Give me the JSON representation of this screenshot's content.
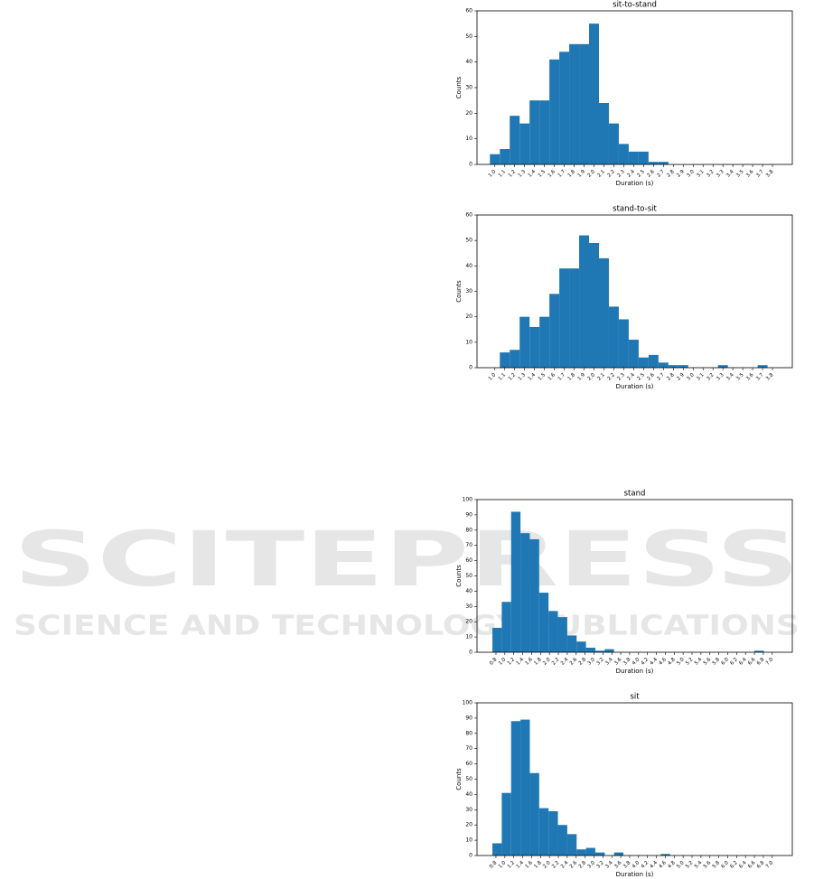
{
  "chart_data": [
    {
      "type": "histogram",
      "title": "sit-to-stand",
      "xlabel": "Duration (s)",
      "ylabel": "Counts",
      "color": "#1f77b4",
      "bins": [
        0.95,
        1.05,
        1.15,
        1.25,
        1.35,
        1.45,
        1.55,
        1.65,
        1.75,
        1.85,
        1.95,
        2.05,
        2.15,
        2.25,
        2.35,
        2.45,
        2.55,
        2.65,
        2.75,
        2.85,
        2.95,
        3.05,
        3.15,
        3.25,
        3.35,
        3.45,
        3.55,
        3.65,
        3.75,
        3.85
      ],
      "values": [
        4,
        6,
        19,
        16,
        25,
        25,
        41,
        44,
        47,
        47,
        55,
        24,
        16,
        8,
        5,
        5,
        1,
        1,
        0,
        0,
        0,
        0,
        0,
        0,
        0,
        0,
        0,
        0,
        0
      ],
      "xlim": [
        0.82,
        4.0
      ],
      "ylim": [
        0,
        60
      ],
      "yticks": [
        0,
        10,
        20,
        30,
        40,
        50,
        60
      ],
      "xticks": [
        {
          "value": 1,
          "label": "1.0"
        },
        1.1,
        1.2,
        1.3,
        1.4,
        1.5,
        1.6,
        1.7,
        1.8,
        1.9,
        {
          "value": 2,
          "label": "2.0"
        },
        2.1,
        2.2,
        2.3,
        2.4,
        2.5,
        2.6,
        2.7,
        2.8,
        2.9,
        {
          "value": 3,
          "label": "3.0"
        },
        3.1,
        3.2,
        3.3,
        3.4,
        3.5,
        3.6,
        3.7,
        3.8
      ]
    },
    {
      "type": "histogram",
      "title": "stand-to-sit",
      "xlabel": "Duration (s)",
      "ylabel": "Counts",
      "color": "#1f77b4",
      "bins": [
        1.05,
        1.15,
        1.25,
        1.35,
        1.45,
        1.55,
        1.65,
        1.75,
        1.85,
        1.95,
        2.05,
        2.15,
        2.25,
        2.35,
        2.45,
        2.55,
        2.65,
        2.75,
        2.85,
        2.95,
        3.05,
        3.15,
        3.25,
        3.35,
        3.45,
        3.55,
        3.65,
        3.75,
        3.85
      ],
      "values": [
        6,
        7,
        20,
        16,
        20,
        29,
        39,
        39,
        52,
        49,
        43,
        24,
        19,
        11,
        4,
        5,
        2,
        1,
        1,
        0,
        0,
        0,
        1,
        0,
        0,
        0,
        1,
        0
      ],
      "xlim": [
        0.82,
        4.0
      ],
      "ylim": [
        0,
        60
      ],
      "yticks": [
        0,
        10,
        20,
        30,
        40,
        50,
        60
      ],
      "xticks": [
        {
          "value": 1,
          "label": "1.0"
        },
        1.1,
        1.2,
        1.3,
        1.4,
        1.5,
        1.6,
        1.7,
        1.8,
        1.9,
        {
          "value": 2,
          "label": "2.0"
        },
        2.1,
        2.2,
        2.3,
        2.4,
        2.5,
        2.6,
        2.7,
        2.8,
        2.9,
        {
          "value": 3,
          "label": "3.0"
        },
        3.1,
        3.2,
        3.3,
        3.4,
        3.5,
        3.6,
        3.7,
        3.8
      ]
    },
    {
      "type": "histogram",
      "title": "stand",
      "xlabel": "Duration (s)",
      "ylabel": "Counts",
      "color": "#1f77b4",
      "bins": [
        0.72,
        0.93,
        1.14,
        1.35,
        1.56,
        1.77,
        1.98,
        2.19,
        2.4,
        2.61,
        2.82,
        3.03,
        3.24,
        3.45,
        3.66,
        3.87,
        4.08,
        4.29,
        4.5,
        4.71,
        4.92,
        5.13,
        5.34,
        5.55,
        5.76,
        5.97,
        6.18,
        6.39,
        6.6,
        6.81,
        7.02
      ],
      "values": [
        16,
        33,
        92,
        78,
        74,
        39,
        27,
        23,
        11,
        7,
        3,
        1,
        2,
        0,
        0,
        0,
        0,
        0,
        0,
        0,
        0,
        0,
        0,
        0,
        0,
        0,
        0,
        0,
        1,
        0
      ],
      "xlim": [
        0.375,
        7.45
      ],
      "ylim": [
        0,
        100
      ],
      "yticks": [
        0,
        10,
        20,
        30,
        40,
        50,
        60,
        70,
        80,
        90,
        100
      ],
      "xticks": [
        0.8,
        {
          "value": 1,
          "label": "1.0"
        },
        1.2,
        1.4,
        1.6,
        1.8,
        {
          "value": 2,
          "label": "2.0"
        },
        2.2,
        2.4,
        2.6,
        2.8,
        {
          "value": 3,
          "label": "3.0"
        },
        3.2,
        3.4,
        3.6,
        3.8,
        {
          "value": 4,
          "label": "4.0"
        },
        4.2,
        4.4,
        4.6,
        4.8,
        {
          "value": 5,
          "label": "5.0"
        },
        5.2,
        5.4,
        5.6,
        5.8,
        {
          "value": 6,
          "label": "6.0"
        },
        6.2,
        6.4,
        6.6,
        6.8,
        {
          "value": 7,
          "label": "7.0"
        }
      ]
    },
    {
      "type": "histogram",
      "title": "sit",
      "xlabel": "Duration (s)",
      "ylabel": "Counts",
      "color": "#1f77b4",
      "bins": [
        0.72,
        0.93,
        1.14,
        1.35,
        1.56,
        1.77,
        1.98,
        2.19,
        2.4,
        2.61,
        2.82,
        3.03,
        3.24,
        3.45,
        3.66,
        3.87,
        4.08,
        4.29,
        4.5,
        4.71,
        4.92,
        5.13,
        5.34,
        5.55,
        5.76,
        5.97,
        6.18,
        6.39,
        6.6,
        6.81,
        7.02
      ],
      "values": [
        8,
        41,
        88,
        89,
        54,
        31,
        29,
        20,
        14,
        4,
        5,
        2,
        0,
        2,
        0,
        0,
        0,
        0,
        1,
        0,
        0,
        0,
        0,
        0,
        0,
        0,
        0,
        0,
        0,
        0
      ],
      "xlim": [
        0.375,
        7.45
      ],
      "ylim": [
        0,
        100
      ],
      "yticks": [
        0,
        10,
        20,
        30,
        40,
        50,
        60,
        70,
        80,
        90,
        100
      ],
      "xticks": [
        0.8,
        {
          "value": 1,
          "label": "1.0"
        },
        1.2,
        1.4,
        1.6,
        1.8,
        {
          "value": 2,
          "label": "2.0"
        },
        2.2,
        2.4,
        2.6,
        2.8,
        {
          "value": 3,
          "label": "3.0"
        },
        3.2,
        3.4,
        3.6,
        3.8,
        {
          "value": 4,
          "label": "4.0"
        },
        4.2,
        4.4,
        4.6,
        4.8,
        {
          "value": 5,
          "label": "5.0"
        },
        5.2,
        5.4,
        5.6,
        5.8,
        {
          "value": 6,
          "label": "6.0"
        },
        6.2,
        6.4,
        6.6,
        6.8,
        {
          "value": 7,
          "label": "7.0"
        }
      ]
    }
  ],
  "watermark": {
    "title": "SCITEPRESS",
    "subtitle": "SCIENCE AND TECHNOLOGY PUBLICATIONS"
  }
}
